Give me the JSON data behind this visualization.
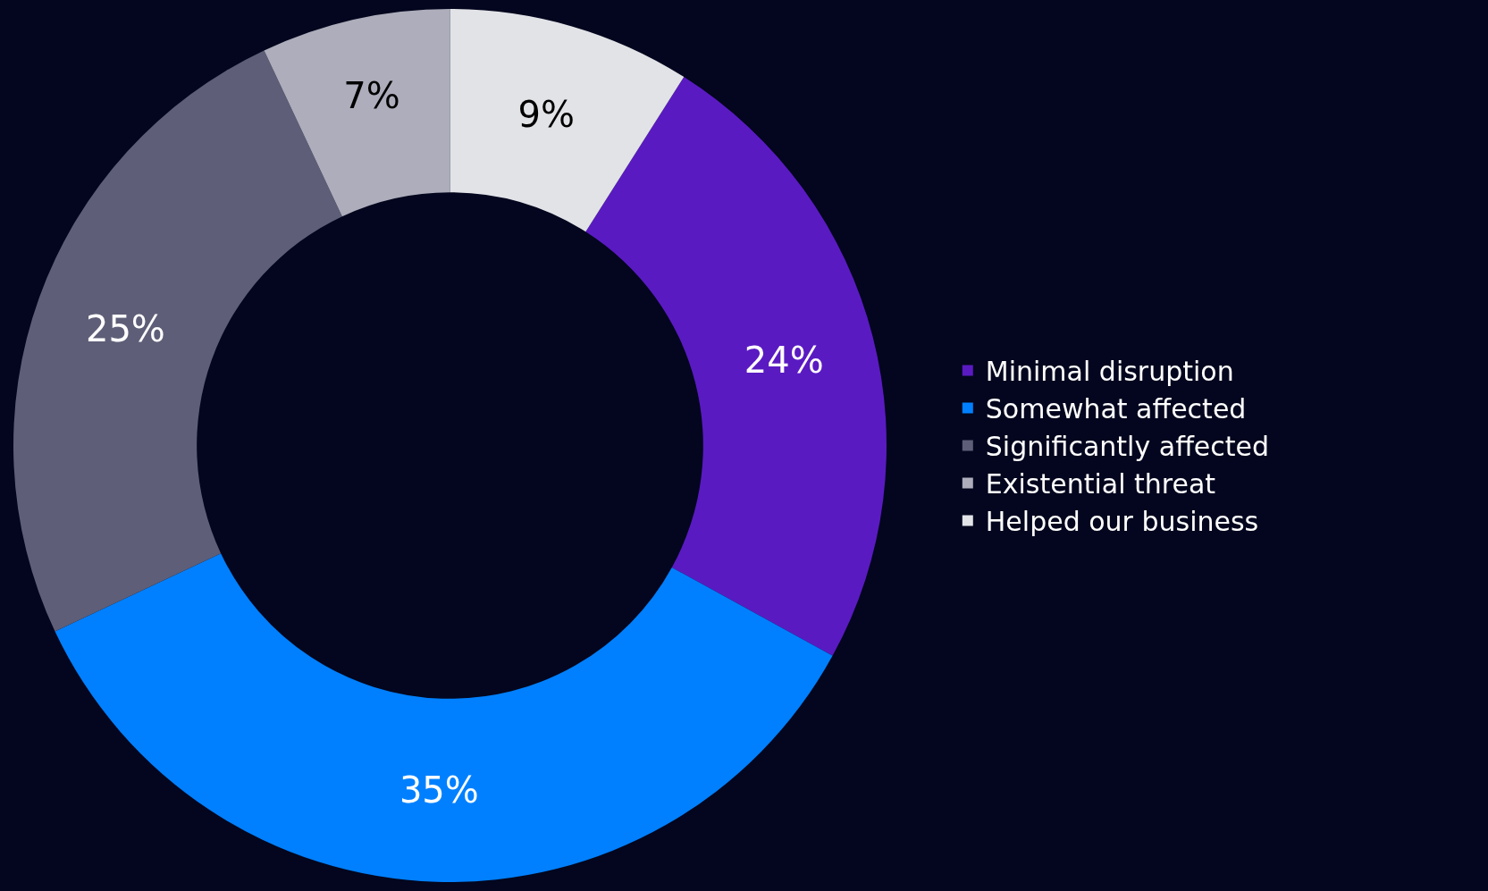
{
  "chart_data": {
    "type": "donut",
    "categories": [
      "Minimal disruption",
      "Somewhat affected",
      "Significantly affected",
      "Existential threat",
      "Helped our business"
    ],
    "values": [
      24,
      35,
      25,
      7,
      9
    ],
    "colors": [
      "#5a1ac2",
      "#0080ff",
      "#5e5e78",
      "#adadbb",
      "#e2e3e7"
    ],
    "value_labels": [
      "24%",
      "35%",
      "25%",
      "7%",
      "9%"
    ],
    "legend": "right"
  }
}
